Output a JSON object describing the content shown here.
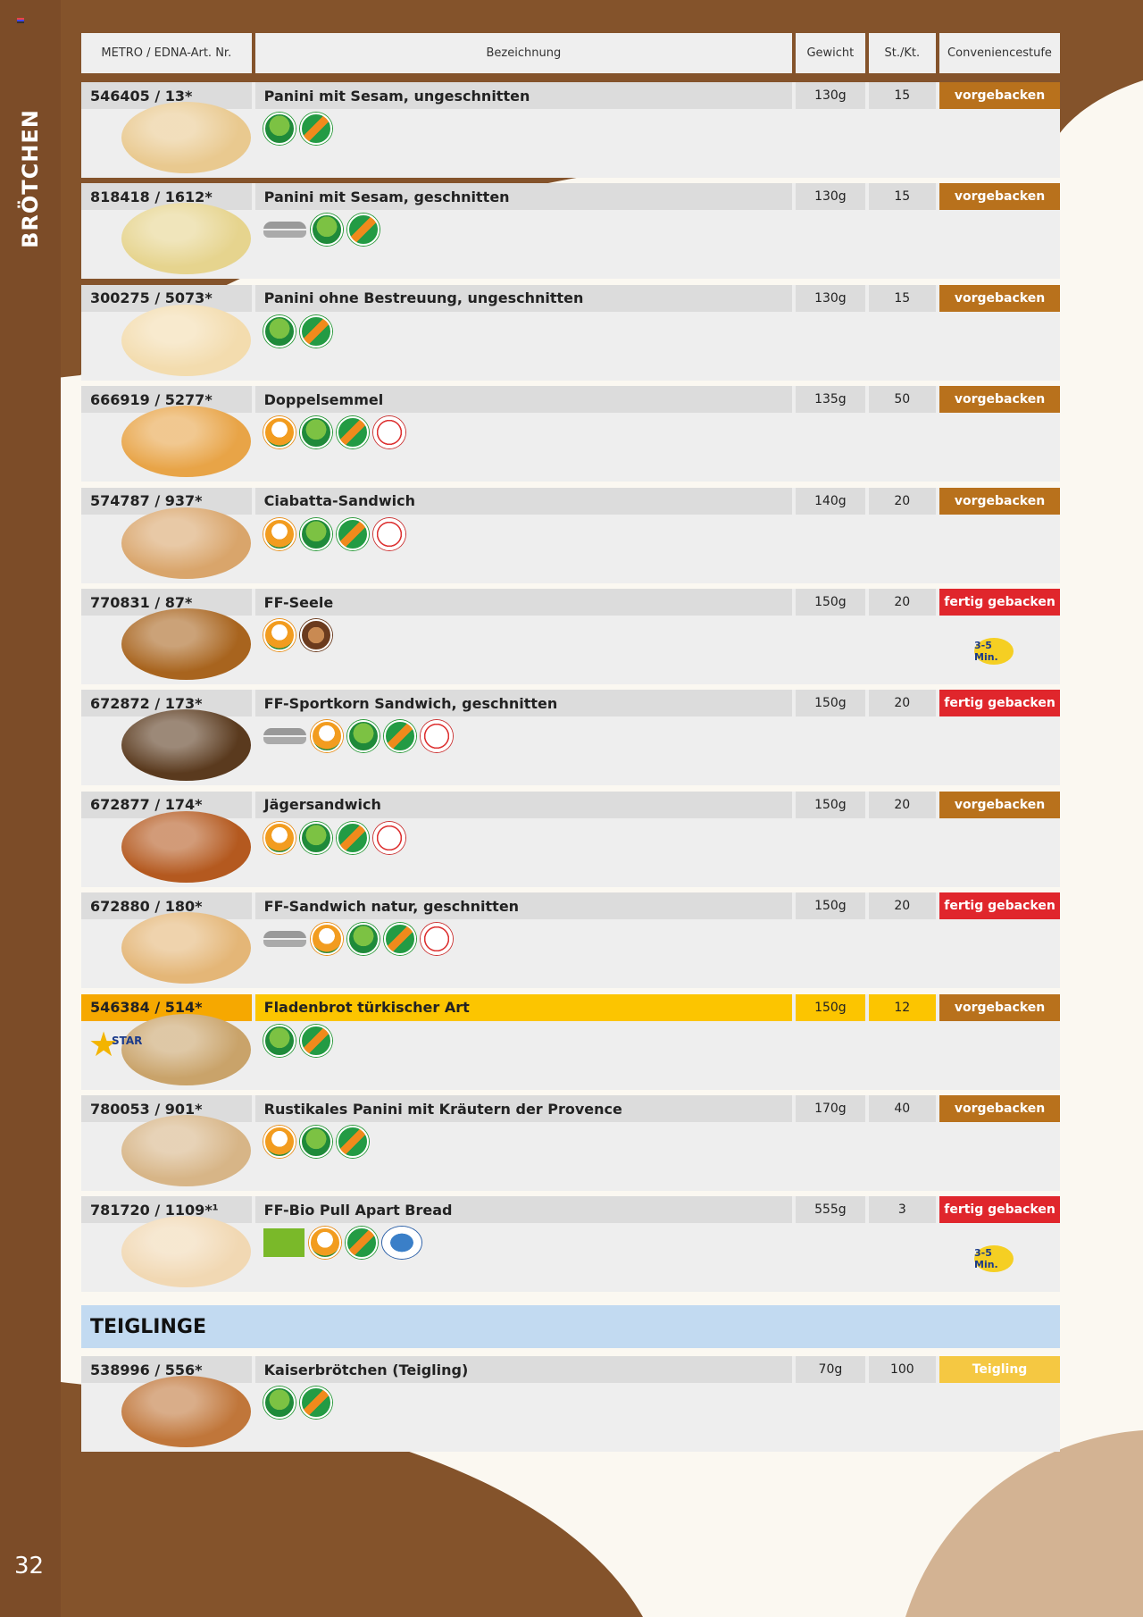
{
  "sidebar": {
    "title": "BRÖTCHEN",
    "page_number": "32"
  },
  "colors": {
    "brown": "#7c4c28",
    "vorgebacken": "#b8711c",
    "fertig_gebacken": "#e0262c",
    "teigling": "#f5c842",
    "section": "#c2daf1",
    "highlight": "#fcc500"
  },
  "header": {
    "art_nr": "METRO / EDNA-Art. Nr.",
    "bezeichnung": "Bezeichnung",
    "gewicht": "Gewicht",
    "st_kt": "St./Kt.",
    "convenience": "Conveniencestufe"
  },
  "rows": [
    {
      "art": "546405 / 13*",
      "name": "Panini mit Sesam, ungeschnitten",
      "weight": "130g",
      "qty": "15",
      "stage": "vorgebacken",
      "icons": [
        "vegan",
        "lactose-free"
      ]
    },
    {
      "art": "818418 / 1612*",
      "name": "Panini mit Sesam, geschnitten",
      "weight": "130g",
      "qty": "15",
      "stage": "vorgebacken",
      "icons": [
        "cut",
        "vegan",
        "lactose-free"
      ]
    },
    {
      "art": "300275 / 5073*",
      "name": "Panini ohne Bestreuung, ungeschnitten",
      "weight": "130g",
      "qty": "15",
      "stage": "vorgebacken",
      "icons": [
        "vegan",
        "lactose-free"
      ]
    },
    {
      "art": "666919 / 5277*",
      "name": "Doppelsemmel",
      "weight": "135g",
      "qty": "50",
      "stage": "vorgebacken",
      "icons": [
        "natural",
        "vegan",
        "lactose-free",
        "knusperwelt"
      ]
    },
    {
      "art": "574787 / 937*",
      "name": "Ciabatta-Sandwich",
      "weight": "140g",
      "qty": "20",
      "stage": "vorgebacken",
      "icons": [
        "natural",
        "vegan",
        "lactose-free",
        "knusperwelt"
      ]
    },
    {
      "art": "770831 / 87*",
      "name": "FF-Seele",
      "weight": "150g",
      "qty": "20",
      "stage": "fertig gebacken",
      "icons": [
        "natural",
        "bakery-seal"
      ],
      "bake_badge": "3-5 Min."
    },
    {
      "art": "672872 / 173*",
      "name": "FF-Sportkorn Sandwich, geschnitten",
      "weight": "150g",
      "qty": "20",
      "stage": "fertig gebacken",
      "icons": [
        "cut",
        "natural",
        "vegan",
        "lactose-free",
        "knusperwelt"
      ]
    },
    {
      "art": "672877 / 174*",
      "name": "Jägersandwich",
      "weight": "150g",
      "qty": "20",
      "stage": "vorgebacken",
      "icons": [
        "natural",
        "vegan",
        "lactose-free",
        "knusperwelt"
      ]
    },
    {
      "art": "672880 / 180*",
      "name": "FF-Sandwich natur, geschnitten",
      "weight": "150g",
      "qty": "20",
      "stage": "fertig gebacken",
      "icons": [
        "cut",
        "natural",
        "vegan",
        "lactose-free",
        "knusperwelt"
      ]
    },
    {
      "art": "546384 / 514*",
      "name": "Fladenbrot türkischer Art",
      "weight": "150g",
      "qty": "12",
      "stage": "vorgebacken",
      "icons": [
        "vegan",
        "lactose-free"
      ],
      "highlight": true,
      "star": "STAR"
    },
    {
      "art": "780053 / 901*",
      "name": "Rustikales Panini mit Kräutern der Provence",
      "weight": "170g",
      "qty": "40",
      "stage": "vorgebacken",
      "icons": [
        "natural",
        "vegan",
        "lactose-free"
      ]
    },
    {
      "art": "781720 / 1109*¹",
      "name": "FF-Bio Pull Apart Bread",
      "weight": "555g",
      "qty": "3",
      "stage": "fertig gebacken",
      "icons": [
        "bio-eu",
        "natural",
        "lactose-free",
        "genuss-seal"
      ],
      "bake_badge": "3-5 Min."
    }
  ],
  "section": {
    "title": "TEIGLINGE"
  },
  "teigling_rows": [
    {
      "art": "538996 / 556*",
      "name": "Kaiserbrötchen (Teigling)",
      "weight": "70g",
      "qty": "100",
      "stage": "Teigling",
      "icons": [
        "vegan",
        "lactose-free"
      ]
    }
  ]
}
